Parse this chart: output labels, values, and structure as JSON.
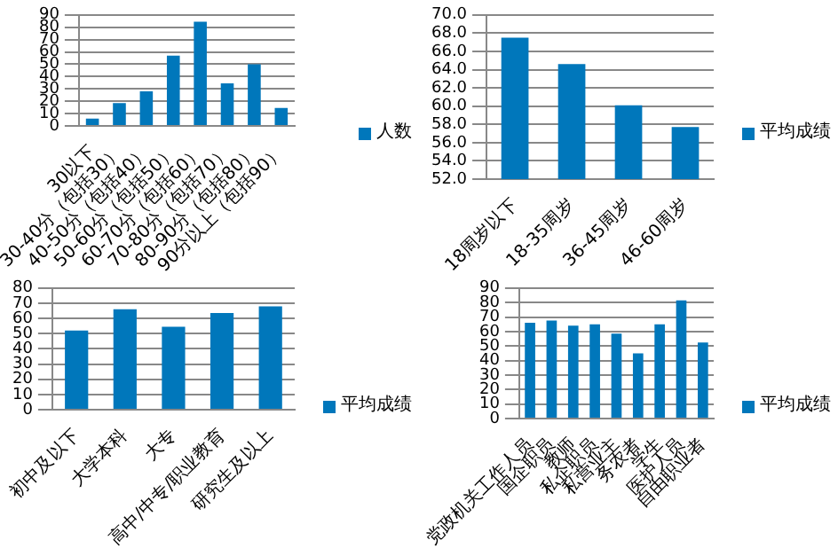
{
  "chart_data": [
    {
      "type": "bar",
      "categories": [
        "30以下",
        "30-40分（包括30）",
        "40-50分（包括40）",
        "50-60分（包括50）",
        "60-70分（包括60）",
        "70-80分（包括70）",
        "80-90分（包括80）",
        "90分以上（包括90）"
      ],
      "series": [
        {
          "name": "人数",
          "color": "#0077bb",
          "values": [
            6,
            18.5,
            28,
            57,
            84.5,
            34.5,
            50,
            14.5
          ]
        }
      ],
      "ylim": [
        0,
        90
      ],
      "yticks": [
        0,
        10,
        20,
        30,
        40,
        50,
        60,
        70,
        80,
        90
      ],
      "grid": "y",
      "legend": "right"
    },
    {
      "type": "bar",
      "categories": [
        "18周岁以下",
        "18-35周岁",
        "36-45周岁",
        "46-60周岁"
      ],
      "series": [
        {
          "name": "平均成绩",
          "color": "#0077bb",
          "values": [
            67.5,
            64.6,
            60.1,
            57.7
          ]
        }
      ],
      "ylim": [
        52,
        70
      ],
      "yticks": [
        {
          "value": 52,
          "label": "52.0"
        },
        {
          "value": 54,
          "label": "54.0"
        },
        {
          "value": 56,
          "label": "56.0"
        },
        {
          "value": 58,
          "label": "58.0"
        },
        {
          "value": 60,
          "label": "60.0"
        },
        {
          "value": 62,
          "label": "62.0"
        },
        {
          "value": 64,
          "label": "64.0"
        },
        {
          "value": 66,
          "label": "66.0"
        },
        {
          "value": 68,
          "label": "68.0"
        },
        {
          "value": 70,
          "label": "70.0"
        }
      ],
      "grid": "y",
      "legend": "right"
    },
    {
      "type": "bar",
      "categories": [
        "初中及以下",
        "大学本科",
        "大专",
        "高中/中专/职业教育",
        "研究生及以上"
      ],
      "series": [
        {
          "name": "平均成绩",
          "color": "#0077bb",
          "values": [
            52,
            66,
            54.5,
            63.5,
            68
          ]
        }
      ],
      "ylim": [
        0,
        80
      ],
      "yticks": [
        0,
        10,
        20,
        30,
        40,
        50,
        60,
        70,
        80
      ],
      "grid": "y",
      "legend": "right"
    },
    {
      "type": "bar",
      "categories": [
        "党政机关工作人员",
        "国企职员",
        "教师",
        "私企职员",
        "私营业主",
        "务农者",
        "学生",
        "医护人员",
        "自由职业者"
      ],
      "series": [
        {
          "name": "平均成绩",
          "color": "#0077bb",
          "values": [
            66,
            67.5,
            64,
            65,
            58.5,
            45,
            65,
            81.5,
            52.5
          ]
        }
      ],
      "ylim": [
        0,
        90
      ],
      "yticks": [
        0,
        10,
        20,
        30,
        40,
        50,
        60,
        70,
        80,
        90
      ],
      "grid": "y",
      "legend": "right"
    }
  ]
}
